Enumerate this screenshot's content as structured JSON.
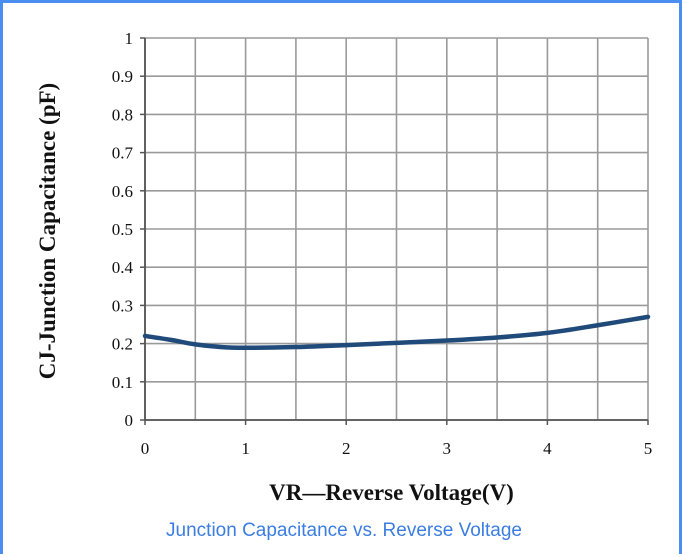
{
  "caption": "Junction Capacitance vs. Reverse Voltage",
  "colors": {
    "frame": "#4a8ef0",
    "caption": "#3b7de0",
    "line": "#1f4a7a",
    "grid": "#9a9a9a"
  },
  "chart_data": {
    "type": "line",
    "title": "",
    "xlabel": "VR—Reverse Voltage(V)",
    "ylabel": "CJ-Junction Capacitance (pF)",
    "xlim": [
      0,
      5
    ],
    "ylim": [
      0,
      1
    ],
    "x_ticks": [
      "0",
      "1",
      "2",
      "3",
      "4",
      "5"
    ],
    "y_ticks": [
      "0",
      "0.1",
      "0.2",
      "0.3",
      "0.4",
      "0.5",
      "0.6",
      "0.7",
      "0.8",
      "0.9",
      "1"
    ],
    "x_gridlines": [
      0,
      0.5,
      1,
      1.5,
      2,
      2.5,
      3,
      3.5,
      4,
      4.5,
      5
    ],
    "y_gridlines": [
      0,
      0.1,
      0.2,
      0.3,
      0.4,
      0.5,
      0.6,
      0.7,
      0.8,
      0.9,
      1
    ],
    "grid": true,
    "legend": "none",
    "series": [
      {
        "x": [
          0,
          0.25,
          0.5,
          0.75,
          1,
          1.5,
          2,
          2.5,
          3,
          3.5,
          4,
          4.5,
          5
        ],
        "y": [
          0.22,
          0.21,
          0.198,
          0.191,
          0.189,
          0.191,
          0.196,
          0.202,
          0.208,
          0.216,
          0.228,
          0.248,
          0.27
        ]
      }
    ]
  }
}
